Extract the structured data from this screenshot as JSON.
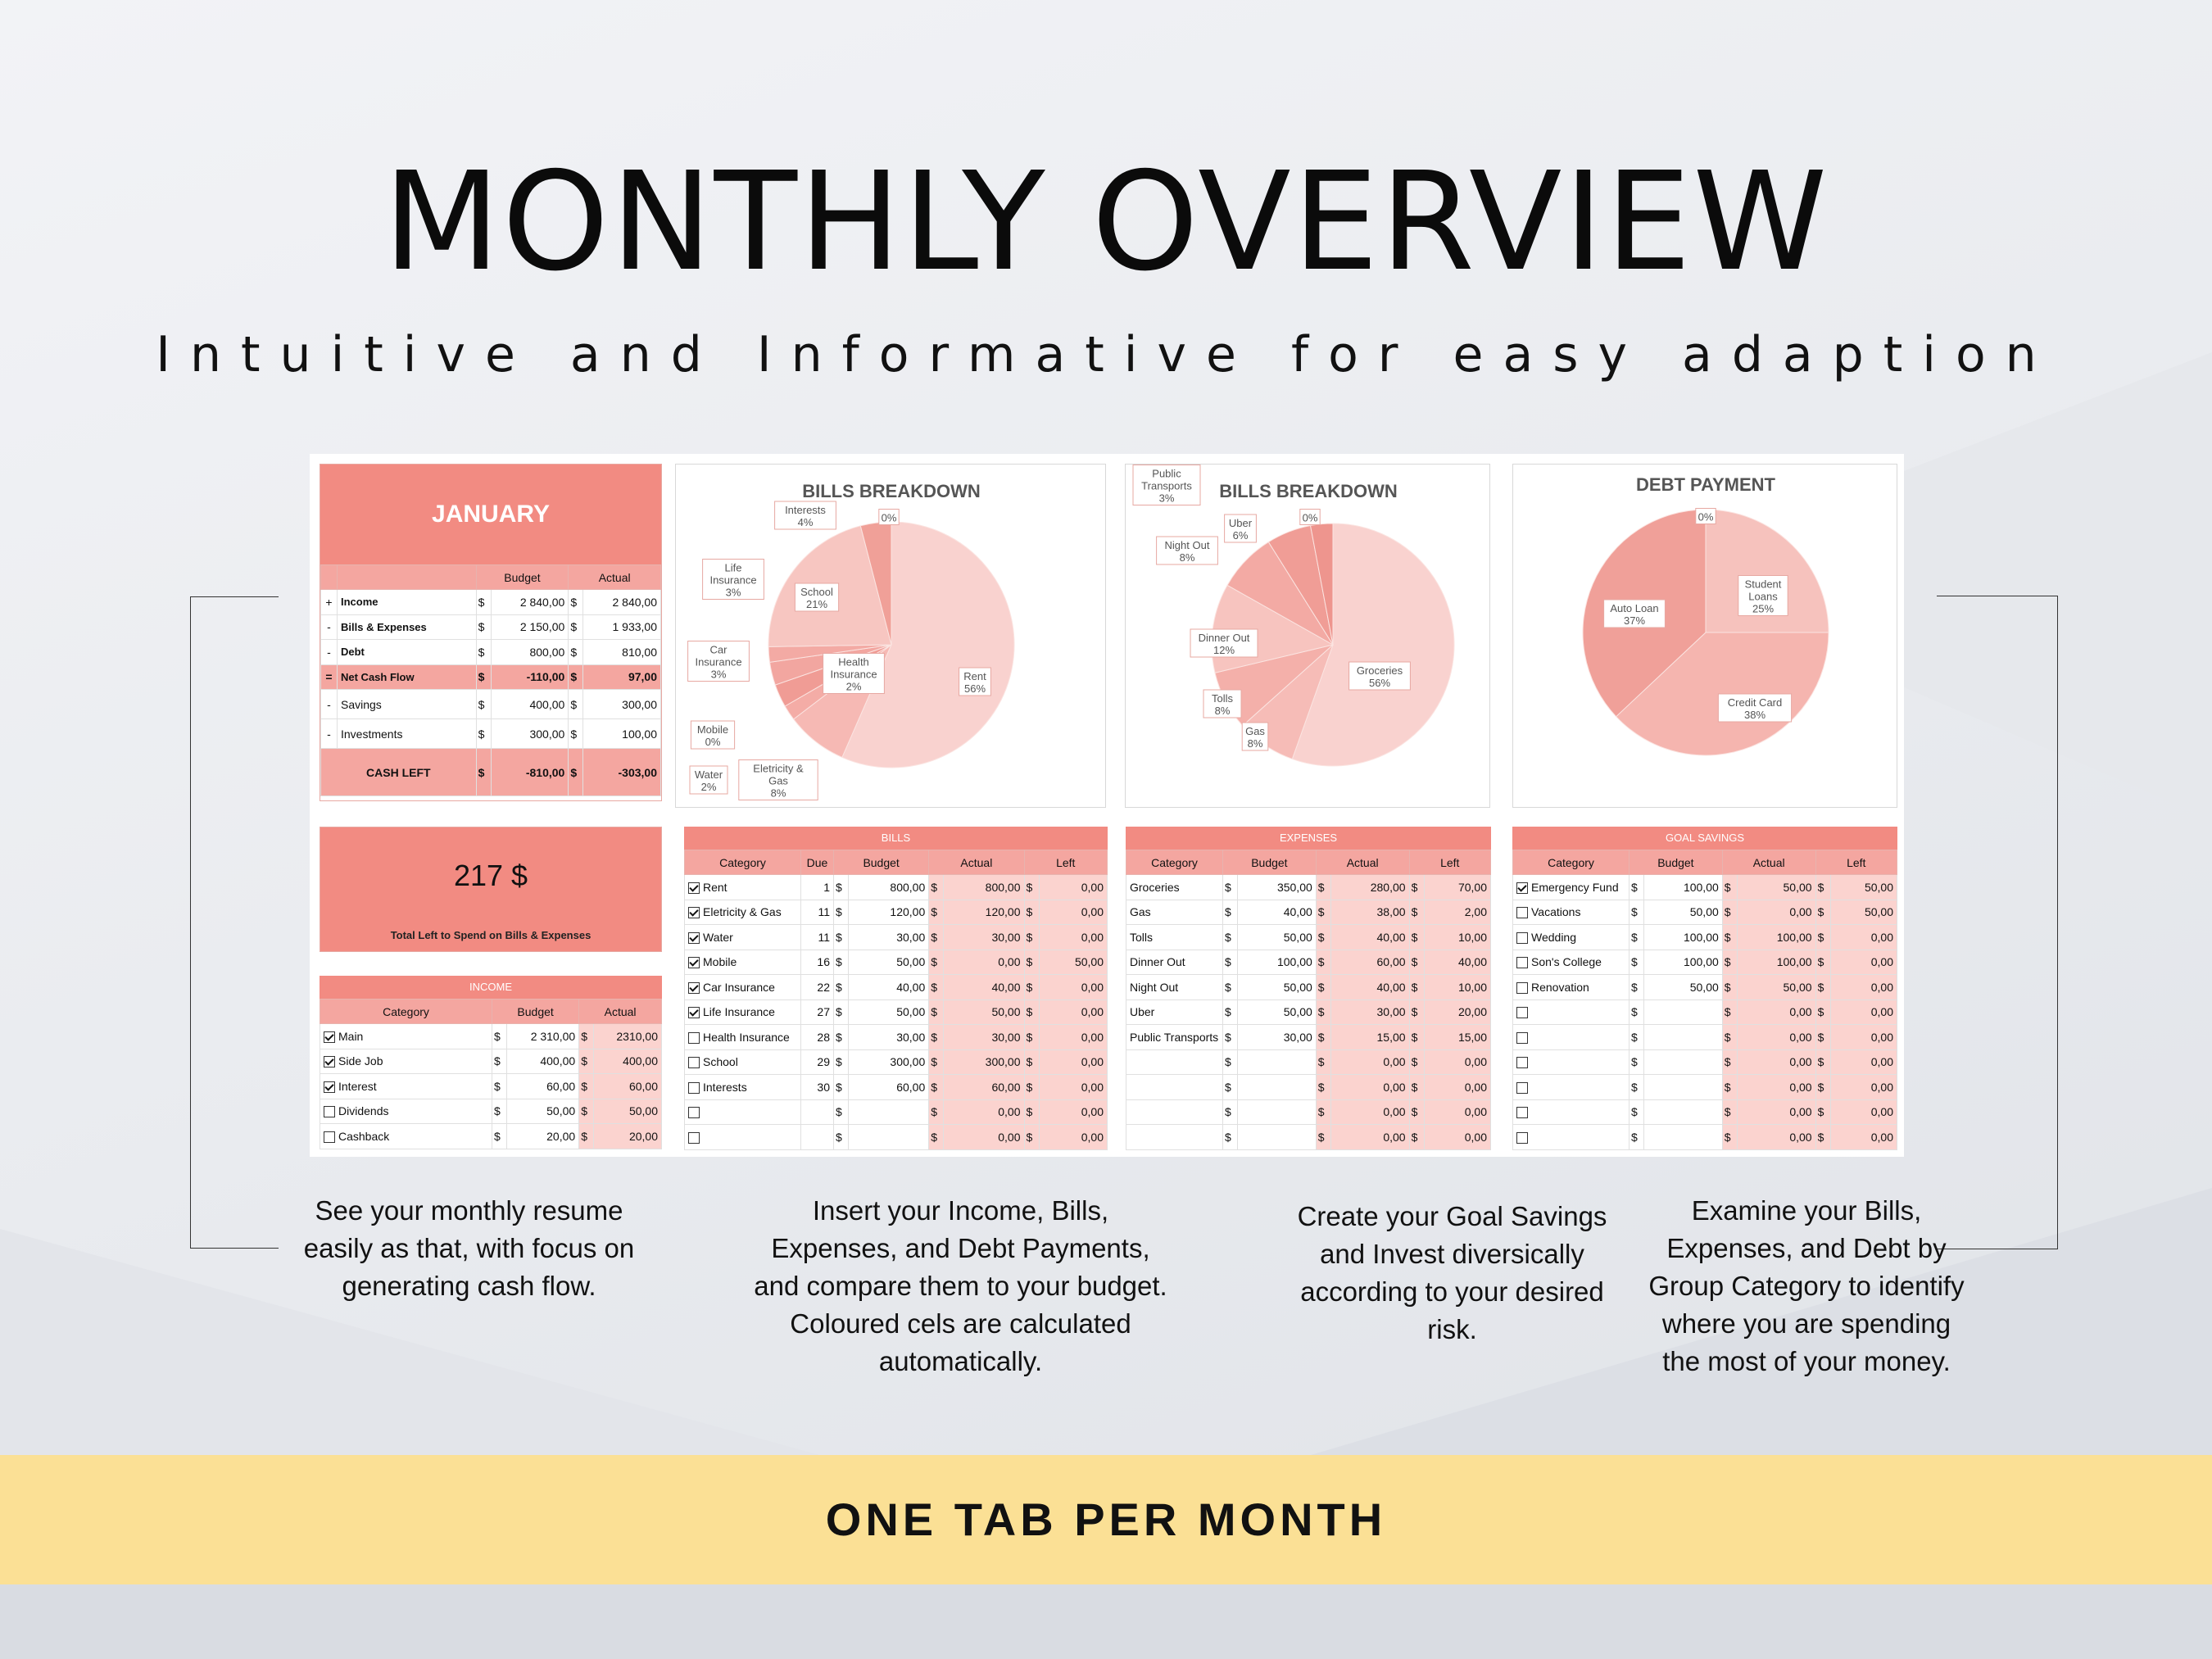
{
  "header": {
    "title": "MONTHLY OVERVIEW",
    "subtitle": "Intuitive and Informative for easy adaption"
  },
  "summary": {
    "month": "JANUARY",
    "columns": [
      "Budget",
      "Actual"
    ],
    "rows": [
      {
        "op": "+",
        "label": "Income",
        "budget": "2 840,00",
        "actual": "2 840,00"
      },
      {
        "op": "-",
        "label": "Bills & Expenses",
        "budget": "2 150,00",
        "actual": "1 933,00"
      },
      {
        "op": "-",
        "label": "Debt",
        "budget": "800,00",
        "actual": "810,00"
      },
      {
        "op": "=",
        "label": "Net Cash Flow",
        "budget": "-110,00",
        "actual": "97,00"
      },
      {
        "op": "-",
        "label": "Savings",
        "budget": "400,00",
        "actual": "300,00"
      },
      {
        "op": "-",
        "label": "Investments",
        "budget": "300,00",
        "actual": "100,00"
      }
    ],
    "cash_left": {
      "label": "CASH LEFT",
      "budget": "-810,00",
      "actual": "-303,00"
    },
    "currency": "$"
  },
  "total_left": {
    "value": "217 $",
    "label": "Total Left to Spend on Bills & Expenses"
  },
  "income": {
    "title": "INCOME",
    "columns": [
      "Category",
      "Budget",
      "Actual"
    ],
    "rows": [
      {
        "checked": true,
        "category": "Main",
        "budget": "2 310,00",
        "actual": "2310,00"
      },
      {
        "checked": true,
        "category": "Side Job",
        "budget": "400,00",
        "actual": "400,00"
      },
      {
        "checked": true,
        "category": "Interest",
        "budget": "60,00",
        "actual": "60,00"
      },
      {
        "checked": false,
        "category": "Dividends",
        "budget": "50,00",
        "actual": "50,00"
      },
      {
        "checked": false,
        "category": "Cashback",
        "budget": "20,00",
        "actual": "20,00"
      }
    ]
  },
  "bills": {
    "title": "BILLS",
    "columns": [
      "Category",
      "Due",
      "Budget",
      "Actual",
      "Left"
    ],
    "rows": [
      {
        "checked": true,
        "category": "Rent",
        "due": "1",
        "budget": "800,00",
        "actual": "800,00",
        "left": "0,00"
      },
      {
        "checked": true,
        "category": "Eletricity & Gas",
        "due": "11",
        "budget": "120,00",
        "actual": "120,00",
        "left": "0,00"
      },
      {
        "checked": true,
        "category": "Water",
        "due": "11",
        "budget": "30,00",
        "actual": "30,00",
        "left": "0,00"
      },
      {
        "checked": true,
        "category": "Mobile",
        "due": "16",
        "budget": "50,00",
        "actual": "0,00",
        "left": "50,00"
      },
      {
        "checked": true,
        "category": "Car Insurance",
        "due": "22",
        "budget": "40,00",
        "actual": "40,00",
        "left": "0,00"
      },
      {
        "checked": true,
        "category": "Life Insurance",
        "due": "27",
        "budget": "50,00",
        "actual": "50,00",
        "left": "0,00"
      },
      {
        "checked": false,
        "category": "Health Insurance",
        "due": "28",
        "budget": "30,00",
        "actual": "30,00",
        "left": "0,00"
      },
      {
        "checked": false,
        "category": "School",
        "due": "29",
        "budget": "300,00",
        "actual": "300,00",
        "left": "0,00"
      },
      {
        "checked": false,
        "category": "Interests",
        "due": "30",
        "budget": "60,00",
        "actual": "60,00",
        "left": "0,00"
      },
      {
        "checked": false,
        "category": "",
        "due": "",
        "budget": "",
        "actual": "0,00",
        "left": "0,00"
      },
      {
        "checked": false,
        "category": "",
        "due": "",
        "budget": "",
        "actual": "0,00",
        "left": "0,00"
      }
    ]
  },
  "expenses": {
    "title": "EXPENSES",
    "columns": [
      "Category",
      "Budget",
      "Actual",
      "Left"
    ],
    "rows": [
      {
        "category": "Groceries",
        "budget": "350,00",
        "actual": "280,00",
        "left": "70,00"
      },
      {
        "category": "Gas",
        "budget": "40,00",
        "actual": "38,00",
        "left": "2,00"
      },
      {
        "category": "Tolls",
        "budget": "50,00",
        "actual": "40,00",
        "left": "10,00"
      },
      {
        "category": "Dinner Out",
        "budget": "100,00",
        "actual": "60,00",
        "left": "40,00"
      },
      {
        "category": "Night Out",
        "budget": "50,00",
        "actual": "40,00",
        "left": "10,00"
      },
      {
        "category": "Uber",
        "budget": "50,00",
        "actual": "30,00",
        "left": "20,00"
      },
      {
        "category": "Public Transports",
        "budget": "30,00",
        "actual": "15,00",
        "left": "15,00"
      },
      {
        "category": "",
        "budget": "",
        "actual": "0,00",
        "left": "0,00"
      },
      {
        "category": "",
        "budget": "",
        "actual": "0,00",
        "left": "0,00"
      },
      {
        "category": "",
        "budget": "",
        "actual": "0,00",
        "left": "0,00"
      },
      {
        "category": "",
        "budget": "",
        "actual": "0,00",
        "left": "0,00"
      }
    ]
  },
  "goal_savings": {
    "title": "GOAL SAVINGS",
    "columns": [
      "Category",
      "Budget",
      "Actual",
      "Left"
    ],
    "rows": [
      {
        "checked": true,
        "category": "Emergency Fund",
        "budget": "100,00",
        "actual": "50,00",
        "left": "50,00"
      },
      {
        "checked": false,
        "category": "Vacations",
        "budget": "50,00",
        "actual": "0,00",
        "left": "50,00"
      },
      {
        "checked": false,
        "category": "Wedding",
        "budget": "100,00",
        "actual": "100,00",
        "left": "0,00"
      },
      {
        "checked": false,
        "category": "Son's College",
        "budget": "100,00",
        "actual": "100,00",
        "left": "0,00"
      },
      {
        "checked": false,
        "category": "Renovation",
        "budget": "50,00",
        "actual": "50,00",
        "left": "0,00"
      },
      {
        "checked": false,
        "category": "",
        "budget": "",
        "actual": "0,00",
        "left": "0,00"
      },
      {
        "checked": false,
        "category": "",
        "budget": "",
        "actual": "0,00",
        "left": "0,00"
      },
      {
        "checked": false,
        "category": "",
        "budget": "",
        "actual": "0,00",
        "left": "0,00"
      },
      {
        "checked": false,
        "category": "",
        "budget": "",
        "actual": "0,00",
        "left": "0,00"
      },
      {
        "checked": false,
        "category": "",
        "budget": "",
        "actual": "0,00",
        "left": "0,00"
      },
      {
        "checked": false,
        "category": "",
        "budget": "",
        "actual": "0,00",
        "left": "0,00"
      }
    ]
  },
  "chart_data": [
    {
      "type": "pie",
      "title": "BILLS BREAKDOWN",
      "slices": [
        {
          "label": "Rent",
          "value": 56,
          "color": "#f9d2cf"
        },
        {
          "label": "Eletricity & Gas",
          "value": 8,
          "color": "#f6b9b4"
        },
        {
          "label": "Water",
          "value": 2,
          "color": "#f4aca6"
        },
        {
          "label": "Mobile",
          "value": 0,
          "color": "#f2a39c"
        },
        {
          "label": "Car Insurance",
          "value": 3,
          "color": "#f09c95"
        },
        {
          "label": "Life Insurance",
          "value": 3,
          "color": "#f2a6a0"
        },
        {
          "label": "Health Insurance",
          "value": 2,
          "color": "#f3aaa4"
        },
        {
          "label": "School",
          "value": 21,
          "color": "#f7c6c1"
        },
        {
          "label": "Interests",
          "value": 4,
          "color": "#f0a098"
        },
        {
          "label": "",
          "value": 0,
          "color": "#f4aca6"
        }
      ],
      "labels": [
        "Rent\n56%",
        "Eletricity &\nGas\n8%",
        "Water\n2%",
        "Mobile\n0%",
        "Car\nInsurance\n3%",
        "Life\nInsurance\n3%",
        "Health\nInsurance\n2%",
        "School\n21%",
        "Interests\n4%",
        "0%"
      ]
    },
    {
      "type": "pie",
      "title": "BILLS BREAKDOWN",
      "slices": [
        {
          "label": "Groceries",
          "value": 56,
          "color": "#f9d2cf"
        },
        {
          "label": "Gas",
          "value": 8,
          "color": "#f6bcb7"
        },
        {
          "label": "Tolls",
          "value": 8,
          "color": "#f4b0aa"
        },
        {
          "label": "Dinner Out",
          "value": 12,
          "color": "#f7c4bf"
        },
        {
          "label": "Night Out",
          "value": 8,
          "color": "#f3aaa4"
        },
        {
          "label": "Uber",
          "value": 6,
          "color": "#f09d96"
        },
        {
          "label": "Public Transports",
          "value": 3,
          "color": "#ee958e"
        },
        {
          "label": "",
          "value": 0,
          "color": "#f4aca6"
        }
      ],
      "labels": [
        "Groceries\n56%",
        "Gas\n8%",
        "Tolls\n8%",
        "Dinner Out\n12%",
        "Night Out\n8%",
        "Uber\n6%",
        "Public\nTransports\n3%",
        "0%"
      ]
    },
    {
      "type": "pie",
      "title": "DEBT PAYMENT",
      "slices": [
        {
          "label": "Student Loans",
          "value": 25,
          "color": "#f6c2bd"
        },
        {
          "label": "Credit Card",
          "value": 38,
          "color": "#f5b5af"
        },
        {
          "label": "Auto Loan",
          "value": 37,
          "color": "#f0a099"
        },
        {
          "label": "",
          "value": 0,
          "color": "#f4aca6"
        }
      ],
      "labels": [
        "Student\nLoans\n25%",
        "Credit Card\n38%",
        "Auto Loan\n37%",
        "0%"
      ]
    }
  ],
  "captions": [
    "See your monthly resume easily as that, with focus on generating cash flow.",
    "Insert your Income, Bills, Expenses, and Debt Payments, and compare them to your budget. Coloured cels are calculated automatically.",
    "Create your Goal Savings and Invest diversically according to your desired risk.",
    "Examine your Bills, Expenses, and Debt by Group Category to identify where you are spending the most of your money."
  ],
  "banner": {
    "text": "ONE TAB PER MONTH"
  }
}
